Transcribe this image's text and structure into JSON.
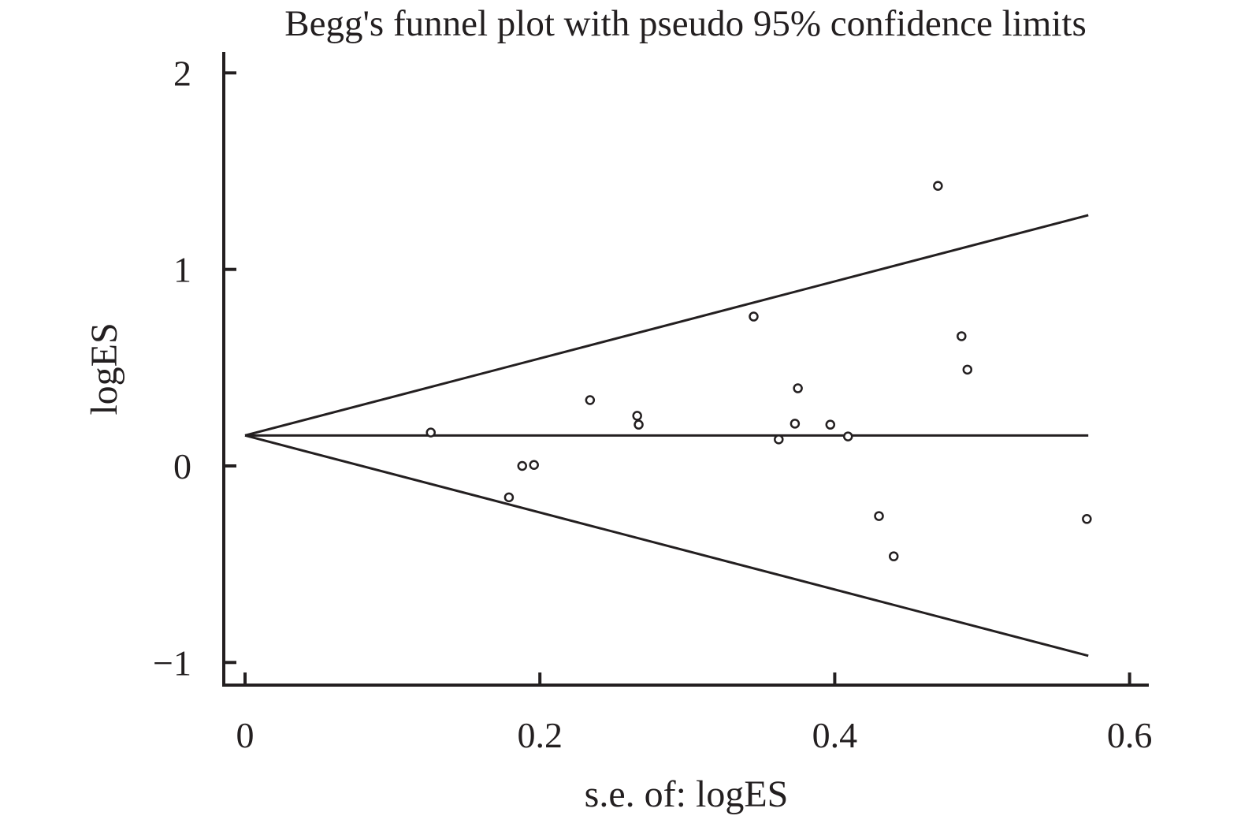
{
  "chart_data": {
    "type": "scatter",
    "title": "Begg's funnel plot with pseudo 95% confidence limits",
    "xlabel": "s.e. of: logES",
    "ylabel": "logES",
    "xlim": [
      0,
      0.6
    ],
    "ylim": [
      -1,
      2
    ],
    "x_ticks": [
      {
        "value": 0,
        "label": "0"
      },
      {
        "value": 0.2,
        "label": "0.2"
      },
      {
        "value": 0.4,
        "label": "0.4"
      },
      {
        "value": 0.6,
        "label": "0.6"
      }
    ],
    "y_ticks": [
      {
        "value": -1,
        "label": "−1"
      },
      {
        "value": 0,
        "label": "0"
      },
      {
        "value": 1,
        "label": "1"
      },
      {
        "value": 2,
        "label": "2"
      }
    ],
    "grid": false,
    "pooled_estimate": 0.155,
    "funnel_lines": {
      "center": [
        [
          0,
          0.155
        ],
        [
          0.572,
          0.155
        ]
      ],
      "upper": [
        [
          0,
          0.155
        ],
        [
          0.572,
          1.276
        ]
      ],
      "lower": [
        [
          0,
          0.155
        ],
        [
          0.572,
          -0.966
        ]
      ]
    },
    "points": [
      {
        "x": 0.126,
        "y": 0.17
      },
      {
        "x": 0.179,
        "y": -0.16
      },
      {
        "x": 0.188,
        "y": 0.0
      },
      {
        "x": 0.196,
        "y": 0.005
      },
      {
        "x": 0.234,
        "y": 0.335
      },
      {
        "x": 0.266,
        "y": 0.255
      },
      {
        "x": 0.267,
        "y": 0.21
      },
      {
        "x": 0.345,
        "y": 0.76
      },
      {
        "x": 0.362,
        "y": 0.135
      },
      {
        "x": 0.373,
        "y": 0.215
      },
      {
        "x": 0.375,
        "y": 0.395
      },
      {
        "x": 0.397,
        "y": 0.21
      },
      {
        "x": 0.409,
        "y": 0.15
      },
      {
        "x": 0.43,
        "y": -0.255
      },
      {
        "x": 0.44,
        "y": -0.46
      },
      {
        "x": 0.47,
        "y": 1.425
      },
      {
        "x": 0.486,
        "y": 0.66
      },
      {
        "x": 0.49,
        "y": 0.49
      },
      {
        "x": 0.571,
        "y": -0.27
      }
    ]
  }
}
